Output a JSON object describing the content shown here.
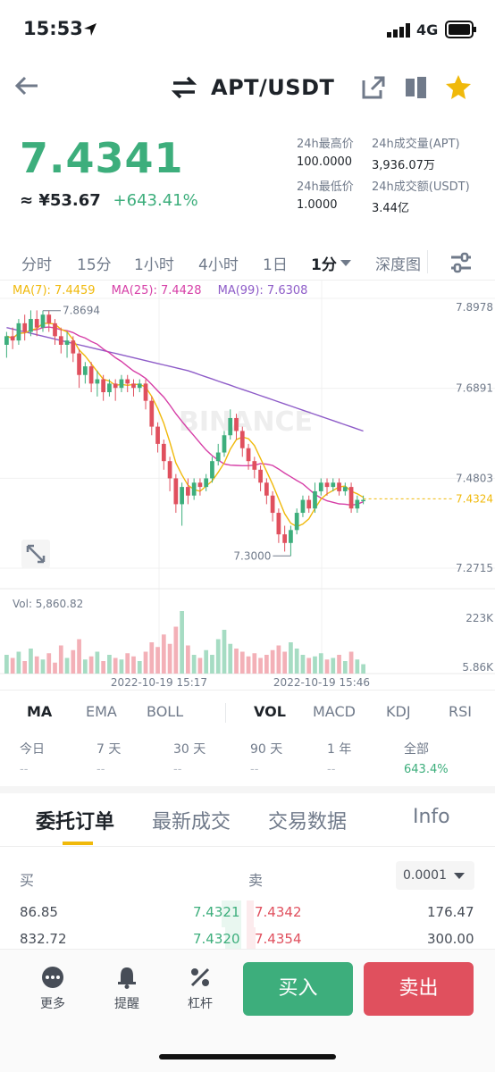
{
  "status": {
    "time": "15:53",
    "network": "4G"
  },
  "header": {
    "pair": "APT/USDT"
  },
  "price": {
    "last": "7.4341",
    "cny": "≈ ¥53.67",
    "change": "+643.41%"
  },
  "stats": {
    "high_label": "24h最高价",
    "high_value": "100.0000",
    "low_label": "24h最低价",
    "low_value": "1.0000",
    "vol_label": "24h成交量(APT)",
    "vol_value": "3,936.07万",
    "amt_label": "24h成交额(USDT)",
    "amt_value": "3.44亿"
  },
  "timeframes": [
    "分时",
    "15分",
    "1小时",
    "4小时",
    "1日",
    "1分",
    "深度图"
  ],
  "ma_legend": {
    "ma7": "MA(7): 7.4459",
    "ma25": "MA(25): 7.4428",
    "ma99": "MA(99): 7.6308"
  },
  "colors": {
    "up": "#3dae7c",
    "down": "#e0505e",
    "ma7": "#f0b90b",
    "ma25": "#d63fa7",
    "ma99": "#8e5cc8"
  },
  "chart_data": {
    "type": "candlestick",
    "y_ticks": [
      "7.8978",
      "7.6891",
      "7.4803",
      "7.2715"
    ],
    "x_ticks": [
      "2022-10-19 15:17",
      "2022-10-19 15:46"
    ],
    "high_marker": "7.8694",
    "low_marker": "7.3000",
    "last_price_label": "7.4324",
    "volume_label": "Vol: 5,860.82",
    "volume_ticks": [
      "223K",
      "5.86K"
    ],
    "ylim": [
      7.2715,
      7.8978
    ],
    "candles": [
      [
        7.79,
        7.81,
        7.76,
        7.82
      ],
      [
        7.81,
        7.8,
        7.78,
        7.83
      ],
      [
        7.8,
        7.84,
        7.79,
        7.85
      ],
      [
        7.84,
        7.82,
        7.8,
        7.86
      ],
      [
        7.82,
        7.85,
        7.81,
        7.87
      ],
      [
        7.85,
        7.83,
        7.81,
        7.87
      ],
      [
        7.83,
        7.86,
        7.82,
        7.8694
      ],
      [
        7.86,
        7.84,
        7.82,
        7.87
      ],
      [
        7.84,
        7.81,
        7.79,
        7.85
      ],
      [
        7.81,
        7.79,
        7.77,
        7.83
      ],
      [
        7.79,
        7.8,
        7.76,
        7.82
      ],
      [
        7.8,
        7.77,
        7.75,
        7.81
      ],
      [
        7.77,
        7.72,
        7.69,
        7.78
      ],
      [
        7.72,
        7.74,
        7.7,
        7.75
      ],
      [
        7.74,
        7.7,
        7.68,
        7.75
      ],
      [
        7.7,
        7.71,
        7.67,
        7.73
      ],
      [
        7.71,
        7.68,
        7.66,
        7.72
      ],
      [
        7.68,
        7.7,
        7.67,
        7.71
      ],
      [
        7.7,
        7.69,
        7.66,
        7.71
      ],
      [
        7.69,
        7.71,
        7.68,
        7.72
      ],
      [
        7.71,
        7.7,
        7.68,
        7.72
      ],
      [
        7.7,
        7.69,
        7.67,
        7.71
      ],
      [
        7.69,
        7.7,
        7.68,
        7.71
      ],
      [
        7.7,
        7.66,
        7.64,
        7.71
      ],
      [
        7.66,
        7.6,
        7.58,
        7.67
      ],
      [
        7.6,
        7.56,
        7.54,
        7.61
      ],
      [
        7.56,
        7.52,
        7.5,
        7.57
      ],
      [
        7.52,
        7.48,
        7.45,
        7.53
      ],
      [
        7.48,
        7.42,
        7.4,
        7.49
      ],
      [
        7.42,
        7.46,
        7.37,
        7.47
      ],
      [
        7.46,
        7.44,
        7.42,
        7.48
      ],
      [
        7.44,
        7.47,
        7.43,
        7.48
      ],
      [
        7.47,
        7.46,
        7.44,
        7.48
      ],
      [
        7.46,
        7.48,
        7.45,
        7.49
      ],
      [
        7.48,
        7.52,
        7.47,
        7.53
      ],
      [
        7.52,
        7.54,
        7.51,
        7.56
      ],
      [
        7.54,
        7.58,
        7.53,
        7.59
      ],
      [
        7.58,
        7.62,
        7.57,
        7.64
      ],
      [
        7.62,
        7.59,
        7.57,
        7.63
      ],
      [
        7.59,
        7.55,
        7.53,
        7.6
      ],
      [
        7.55,
        7.52,
        7.5,
        7.56
      ],
      [
        7.52,
        7.5,
        7.48,
        7.53
      ],
      [
        7.5,
        7.47,
        7.45,
        7.51
      ],
      [
        7.47,
        7.44,
        7.42,
        7.48
      ],
      [
        7.44,
        7.4,
        7.38,
        7.45
      ],
      [
        7.4,
        7.35,
        7.33,
        7.41
      ],
      [
        7.35,
        7.33,
        7.31,
        7.37
      ],
      [
        7.33,
        7.36,
        7.3,
        7.37
      ],
      [
        7.36,
        7.4,
        7.35,
        7.41
      ],
      [
        7.4,
        7.43,
        7.39,
        7.44
      ],
      [
        7.43,
        7.41,
        7.4,
        7.44
      ],
      [
        7.41,
        7.45,
        7.4,
        7.47
      ],
      [
        7.45,
        7.47,
        7.44,
        7.48
      ],
      [
        7.47,
        7.46,
        7.44,
        7.48
      ],
      [
        7.46,
        7.47,
        7.45,
        7.48
      ],
      [
        7.47,
        7.45,
        7.44,
        7.48
      ],
      [
        7.45,
        7.46,
        7.44,
        7.47
      ],
      [
        7.46,
        7.41,
        7.4,
        7.47
      ],
      [
        7.41,
        7.43,
        7.4,
        7.44
      ],
      [
        7.43,
        7.43,
        7.42,
        7.44
      ]
    ],
    "volumes": [
      12,
      10,
      14,
      8,
      16,
      11,
      9,
      13,
      7,
      18,
      10,
      15,
      22,
      9,
      11,
      14,
      8,
      12,
      10,
      9,
      13,
      11,
      8,
      14,
      20,
      17,
      25,
      19,
      30,
      40,
      18,
      12,
      10,
      15,
      12,
      22,
      28,
      19,
      16,
      14,
      11,
      13,
      10,
      12,
      15,
      18,
      14,
      20,
      16,
      12,
      10,
      11,
      13,
      9,
      10,
      12,
      8,
      14,
      9,
      6
    ]
  },
  "indicators": [
    "MA",
    "EMA",
    "BOLL",
    "VOL",
    "MACD",
    "KDJ",
    "RSI"
  ],
  "performance": [
    {
      "label": "今日",
      "value": "--"
    },
    {
      "label": "7 天",
      "value": "--"
    },
    {
      "label": "30 天",
      "value": "--"
    },
    {
      "label": "90 天",
      "value": "--"
    },
    {
      "label": "1 年",
      "value": "--"
    },
    {
      "label": "全部",
      "value": "643.4%"
    }
  ],
  "order_tabs": [
    "委托订单",
    "最新成交",
    "交易数据",
    "Info"
  ],
  "orderbook": {
    "buy_label": "买",
    "sell_label": "卖",
    "precision": "0.0001",
    "rows": [
      {
        "bid_qty": "86.85",
        "bid": "7.4321",
        "ask": "7.4342",
        "ask_qty": "176.47"
      },
      {
        "bid_qty": "832.72",
        "bid": "7.4320",
        "ask": "7.4354",
        "ask_qty": "300.00"
      }
    ]
  },
  "bottom": {
    "more": "更多",
    "alert": "提醒",
    "leverage": "杠杆",
    "buy": "买入",
    "sell": "卖出"
  }
}
